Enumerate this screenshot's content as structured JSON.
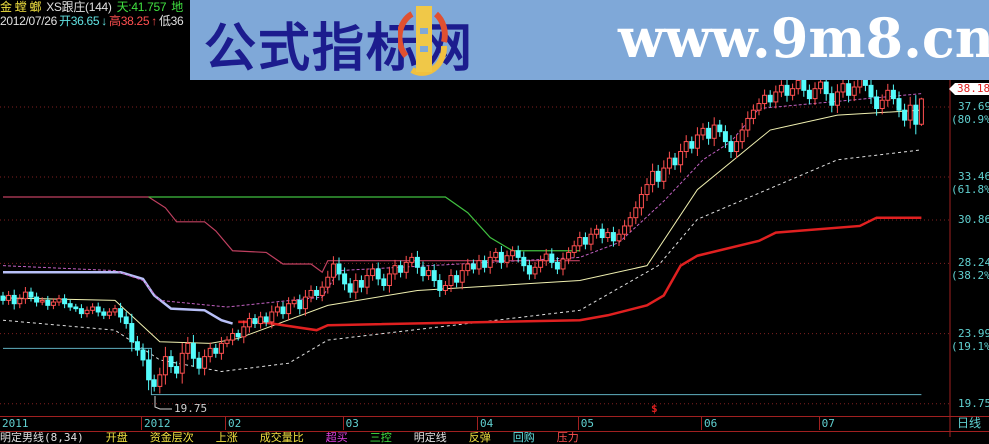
{
  "header": {
    "stock_name": "金 螳 螂",
    "indicator": "XS跟庄(144)",
    "tian": "天:41.757",
    "di": "地",
    "date": "2012/07/26",
    "open": "开36.65",
    "open_arrow": "↓",
    "high": "高38.25",
    "high_arrow": "↑",
    "low": "低36"
  },
  "banner": {
    "title": "公式指标网",
    "url": "www.9m8.cn",
    "logo_text": "www.9m8.cn"
  },
  "right_axis": {
    "current_price": "38.18",
    "labels": [
      {
        "value": "37.69",
        "pct": "(80.9%)"
      },
      {
        "value": "33.46",
        "pct": "(61.8%)"
      },
      {
        "value": "30.86",
        "pct": ""
      },
      {
        "value": "28.24",
        "pct": "(38.2%)"
      },
      {
        "value": "23.99",
        "pct": "(19.1%)"
      },
      {
        "value": "19.75",
        "pct": ""
      }
    ],
    "period": "日线"
  },
  "low_marker": "19.75",
  "dollar_marker": "$",
  "bottom_bar": [
    "明定男线(8,34)",
    "开盘",
    "资金层次",
    "上涨",
    "成交量比",
    "超买",
    "三控",
    "明定线",
    "反弹",
    "回购",
    "压力"
  ],
  "colors": {
    "up": "#ff5050",
    "down": "#54fcfc",
    "grid": "#802020",
    "ma": "#f0f0b0",
    "support": "#e02020",
    "resist": "#c04060",
    "green": "#40c040",
    "blue": "#b8c0f8",
    "magenta": "#c060c0",
    "cyan_line": "#60b0c0"
  },
  "chart_data": {
    "type": "candlestick",
    "last_date": "2012/07/26",
    "ylim": [
      19.0,
      40.0
    ],
    "grid": true,
    "x_ticks": [
      {
        "label": "2011",
        "index": 0
      },
      {
        "label": "2012",
        "index": 25
      },
      {
        "label": "02",
        "index": 40
      },
      {
        "label": "03",
        "index": 61
      },
      {
        "label": "04",
        "index": 85
      },
      {
        "label": "05",
        "index": 103
      },
      {
        "label": "06",
        "index": 125
      },
      {
        "label": "07",
        "index": 146
      }
    ],
    "last_candle": {
      "open": 36.65,
      "high": 38.25,
      "close": 38.18
    },
    "closes": [
      26.0,
      26.3,
      25.8,
      26.1,
      26.5,
      26.2,
      25.9,
      26.0,
      25.7,
      25.9,
      26.1,
      25.8,
      25.6,
      25.5,
      25.2,
      25.4,
      25.6,
      25.3,
      25.1,
      25.3,
      25.5,
      25.0,
      24.6,
      23.5,
      23.0,
      22.4,
      21.2,
      20.8,
      21.5,
      22.6,
      22.0,
      21.6,
      22.8,
      23.4,
      22.5,
      21.9,
      22.6,
      23.1,
      22.8,
      23.4,
      23.6,
      24.0,
      23.8,
      24.4,
      24.9,
      24.6,
      25.0,
      24.7,
      25.3,
      25.6,
      25.2,
      25.8,
      26.0,
      25.5,
      26.2,
      26.6,
      26.3,
      26.8,
      27.4,
      28.2,
      27.6,
      27.0,
      26.5,
      27.2,
      26.8,
      27.5,
      27.9,
      27.3,
      26.9,
      27.6,
      28.1,
      27.7,
      28.3,
      28.6,
      28.0,
      27.5,
      27.8,
      27.2,
      26.6,
      26.9,
      27.5,
      27.1,
      27.8,
      28.2,
      27.9,
      28.4,
      28.0,
      28.6,
      28.9,
      28.3,
      28.7,
      29.0,
      28.6,
      28.1,
      27.6,
      28.0,
      28.4,
      28.8,
      28.3,
      27.9,
      28.5,
      28.9,
      29.3,
      29.8,
      29.4,
      30.0,
      30.3,
      29.8,
      30.1,
      29.6,
      30.0,
      30.5,
      31.0,
      31.6,
      32.4,
      33.0,
      33.8,
      33.2,
      34.0,
      34.6,
      34.2,
      35.0,
      35.6,
      35.2,
      36.0,
      36.4,
      35.8,
      36.6,
      36.2,
      35.6,
      35.0,
      35.6,
      36.3,
      37.0,
      37.5,
      37.9,
      38.4,
      38.0,
      38.6,
      39.0,
      38.4,
      38.8,
      39.3,
      38.7,
      38.2,
      38.8,
      39.2,
      38.5,
      37.8,
      38.6,
      39.1,
      38.4,
      38.9,
      39.5,
      39.0,
      38.3,
      37.6,
      38.1,
      38.7,
      38.2,
      37.5,
      36.9,
      37.8,
      36.65,
      38.18
    ],
    "lines": [
      {
        "id": "resist",
        "color": "#c04060",
        "width": 1.2,
        "dash": "",
        "points": [
          [
            0,
            32.25
          ],
          [
            26,
            32.25
          ],
          [
            29,
            31.6
          ],
          [
            31,
            30.75
          ],
          [
            36,
            30.75
          ],
          [
            38,
            30.2
          ],
          [
            41,
            29.0
          ],
          [
            47,
            28.9
          ],
          [
            50,
            28.2
          ],
          [
            55,
            28.2
          ],
          [
            57,
            27.7
          ],
          [
            58,
            28.4
          ],
          [
            103,
            28.4
          ]
        ]
      },
      {
        "id": "green",
        "color": "#40c040",
        "width": 1.2,
        "dash": "",
        "points": [
          [
            26,
            32.25
          ],
          [
            79,
            32.25
          ],
          [
            83,
            31.3
          ],
          [
            87,
            29.8
          ],
          [
            91,
            29.0
          ],
          [
            103,
            29.0
          ]
        ]
      },
      {
        "id": "blue",
        "color": "#b8c0f8",
        "width": 2.5,
        "dash": "",
        "points": [
          [
            0,
            27.7
          ],
          [
            21,
            27.7
          ],
          [
            25,
            27.3
          ],
          [
            27,
            26.3
          ],
          [
            30,
            25.5
          ],
          [
            36,
            25.4
          ],
          [
            39,
            24.8
          ],
          [
            41,
            24.6
          ]
        ]
      },
      {
        "id": "magenta",
        "color": "#c060c0",
        "width": 1,
        "dash": "3,2",
        "points": [
          [
            0,
            28.1
          ],
          [
            20,
            27.8
          ],
          [
            25,
            27.2
          ],
          [
            28,
            26.0
          ],
          [
            40,
            25.6
          ],
          [
            57,
            26.2
          ],
          [
            60,
            27.8
          ],
          [
            103,
            28.6
          ],
          [
            110,
            29.5
          ],
          [
            118,
            32.0
          ],
          [
            125,
            34.5
          ],
          [
            130,
            35.6
          ],
          [
            135,
            37.6
          ],
          [
            164,
            38.5
          ]
        ]
      },
      {
        "id": "ma",
        "color": "#f0f0b0",
        "width": 1,
        "dash": "",
        "points": [
          [
            0,
            26.15
          ],
          [
            20,
            26.0
          ],
          [
            28,
            23.5
          ],
          [
            37,
            23.4
          ],
          [
            42,
            23.7
          ],
          [
            58,
            25.7
          ],
          [
            74,
            26.6
          ],
          [
            103,
            27.2
          ],
          [
            115,
            28.1
          ],
          [
            124,
            32.7
          ],
          [
            137,
            36.3
          ],
          [
            149,
            37.2
          ],
          [
            164,
            37.5
          ]
        ]
      },
      {
        "id": "lower",
        "color": "#e0e0e0",
        "width": 1,
        "dash": "3,3",
        "points": [
          [
            0,
            24.8
          ],
          [
            20,
            24.2
          ],
          [
            28,
            22.4
          ],
          [
            39,
            21.7
          ],
          [
            51,
            22.2
          ],
          [
            58,
            23.6
          ],
          [
            103,
            25.4
          ],
          [
            117,
            28.1
          ],
          [
            124,
            30.9
          ],
          [
            149,
            34.5
          ],
          [
            164,
            35.1
          ]
        ]
      },
      {
        "id": "support",
        "color": "#e02020",
        "width": 2.5,
        "dash": "",
        "points": [
          [
            42,
            24.7
          ],
          [
            46,
            24.7
          ],
          [
            56,
            24.2
          ],
          [
            58,
            24.5
          ],
          [
            103,
            24.8
          ],
          [
            108,
            25.1
          ],
          [
            115,
            25.7
          ],
          [
            118,
            26.3
          ],
          [
            121,
            28.1
          ],
          [
            124,
            28.7
          ],
          [
            135,
            29.6
          ],
          [
            138,
            30.1
          ],
          [
            153,
            30.5
          ],
          [
            156,
            31.0
          ],
          [
            164,
            31.0
          ]
        ]
      },
      {
        "id": "cyan1",
        "color": "#60b0c0",
        "width": 1,
        "dash": "",
        "points": [
          [
            0,
            23.1
          ],
          [
            26.5,
            23.1
          ],
          [
            26.5,
            20.3
          ],
          [
            164,
            20.3
          ]
        ]
      }
    ]
  }
}
